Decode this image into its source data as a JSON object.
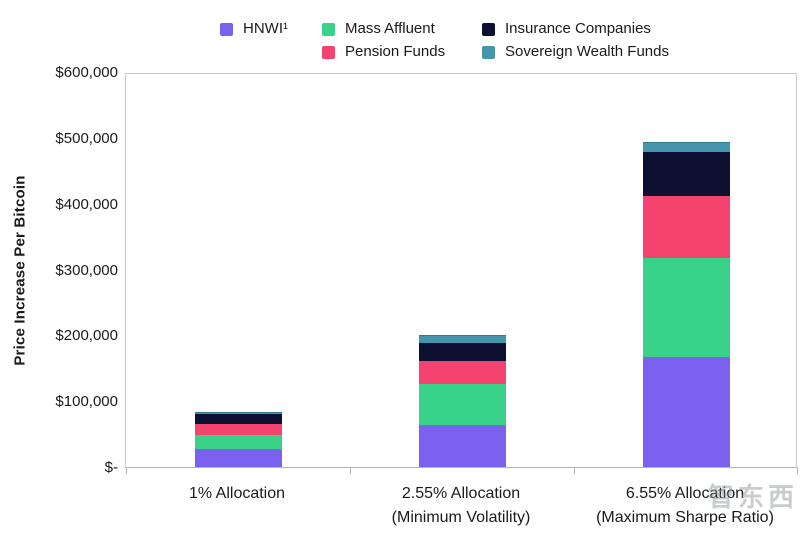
{
  "watermark": "智东西",
  "legend": {
    "items": [
      {
        "label": "HNWI¹",
        "color": "#7B61F0",
        "row": 1,
        "col": 1
      },
      {
        "label": "Mass Affluent",
        "color": "#38D389",
        "row": 1,
        "col": 2
      },
      {
        "label": "Insurance Companies",
        "color": "#0E1031",
        "row": 1,
        "col": 3
      },
      {
        "label": "Pension Funds",
        "color": "#F4436E",
        "row": 2,
        "col": 2
      },
      {
        "label": "Sovereign Wealth Funds",
        "color": "#4596AC",
        "row": 2,
        "col": 3
      }
    ]
  },
  "chart_data": {
    "type": "bar",
    "stacked": true,
    "title": "",
    "xlabel": "",
    "ylabel": "Price Increase Per Bitcoin",
    "ylim": [
      0,
      600000
    ],
    "ytick_interval": 100000,
    "ytick_labels": [
      "$-",
      "$100,000",
      "$200,000",
      "$300,000",
      "$400,000",
      "$500,000",
      "$600,000"
    ],
    "grid": false,
    "legend_position": "top",
    "categories": [
      {
        "lines": [
          "1% Allocation"
        ]
      },
      {
        "lines": [
          "2.55% Allocation",
          "(Minimum Volatility)"
        ]
      },
      {
        "lines": [
          "6.55% Allocation",
          "(Maximum Sharpe Ratio)"
        ]
      }
    ],
    "series": [
      {
        "name": "HNWI¹",
        "color": "#7B61F0",
        "values": [
          27000,
          64000,
          167000
        ]
      },
      {
        "name": "Mass Affluent",
        "color": "#38D389",
        "values": [
          22000,
          62000,
          151000
        ]
      },
      {
        "name": "Pension Funds",
        "color": "#F4436E",
        "values": [
          16000,
          35000,
          94000
        ]
      },
      {
        "name": "Insurance Companies",
        "color": "#0E1031",
        "values": [
          15000,
          27000,
          66000
        ]
      },
      {
        "name": "Sovereign Wealth Funds",
        "color": "#4596AC",
        "values": [
          4000,
          12000,
          15000
        ],
        "border": "#2E7A8F"
      }
    ],
    "totals": [
      84000,
      200000,
      493000
    ]
  }
}
